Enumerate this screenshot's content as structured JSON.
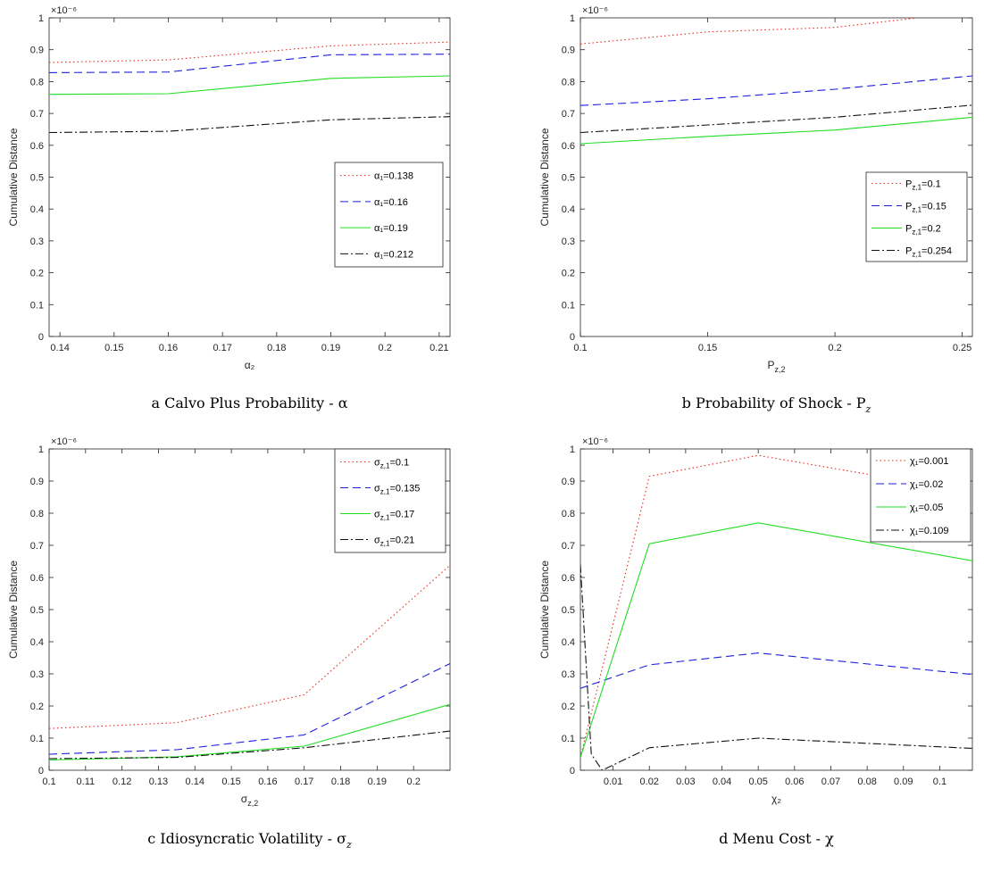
{
  "chart_data": [
    {
      "type": "line",
      "panel": "a",
      "caption": "a  Calvo Plus Probability - α",
      "exponent": "×10⁻⁶",
      "xlabel": "α₂",
      "ylabel": "Cumulative Distance",
      "xlim": [
        0.138,
        0.212
      ],
      "ylim": [
        0,
        1
      ],
      "xticks": [
        0.14,
        0.15,
        0.16,
        0.17,
        0.18,
        0.19,
        0.2,
        0.21
      ],
      "yticks": [
        0,
        0.1,
        0.2,
        0.3,
        0.4,
        0.5,
        0.6,
        0.7,
        0.8,
        0.9,
        1
      ],
      "legend_position": "right-middle",
      "x": [
        0.138,
        0.16,
        0.19,
        0.212
      ],
      "series": [
        {
          "name": "α₁=0.138",
          "style": "dotted",
          "color": "#e8281e",
          "values": [
            0.86,
            0.868,
            0.912,
            0.924
          ]
        },
        {
          "name": "α₁=0.16",
          "style": "dashed",
          "color": "#1f1fe0",
          "values": [
            0.828,
            0.83,
            0.884,
            0.886
          ]
        },
        {
          "name": "α₁=0.19",
          "style": "solid",
          "color": "#22dd22",
          "values": [
            0.76,
            0.762,
            0.81,
            0.818
          ]
        },
        {
          "name": "α₁=0.212",
          "style": "dashdot",
          "color": "#111111",
          "values": [
            0.64,
            0.644,
            0.68,
            0.69
          ]
        }
      ]
    },
    {
      "type": "line",
      "panel": "b",
      "caption": "b  Probability of Shock - P",
      "caption_sub": "z",
      "exponent": "×10⁻⁶",
      "xlabel": "P",
      "xlabel_sub": "z,2",
      "ylabel": "Cumulative Distance",
      "xlim": [
        0.1,
        0.254
      ],
      "ylim": [
        0,
        1
      ],
      "xticks": [
        0.1,
        0.15,
        0.2,
        0.25
      ],
      "yticks": [
        0,
        0.1,
        0.2,
        0.3,
        0.4,
        0.5,
        0.6,
        0.7,
        0.8,
        0.9,
        1
      ],
      "legend_position": "right-middle",
      "x": [
        0.1,
        0.15,
        0.2,
        0.254
      ],
      "series": [
        {
          "name": "P",
          "name_sub": "z,1",
          "name_val": "=0.1",
          "style": "dotted",
          "color": "#e8281e",
          "values": [
            0.918,
            0.956,
            0.97,
            1.02
          ]
        },
        {
          "name": "P",
          "name_sub": "z,1",
          "name_val": "=0.15",
          "style": "dashed",
          "color": "#1f1fe0",
          "values": [
            0.725,
            0.746,
            0.776,
            0.818
          ]
        },
        {
          "name": "P",
          "name_sub": "z,1",
          "name_val": "=0.2",
          "style": "solid",
          "color": "#22dd22",
          "values": [
            0.605,
            0.628,
            0.648,
            0.688
          ]
        },
        {
          "name": "P",
          "name_sub": "z,1",
          "name_val": "=0.254",
          "style": "dashdot",
          "color": "#111111",
          "values": [
            0.64,
            0.664,
            0.688,
            0.726
          ]
        }
      ]
    },
    {
      "type": "line",
      "panel": "c",
      "caption": "c  Idiosyncratic Volatility - σ",
      "caption_sub": "z",
      "exponent": "×10⁻⁶",
      "xlabel": "σ",
      "xlabel_sub": "z,2",
      "ylabel": "Cumulative Distance",
      "xlim": [
        0.1,
        0.21
      ],
      "ylim": [
        0,
        1
      ],
      "xticks": [
        0.1,
        0.11,
        0.12,
        0.13,
        0.14,
        0.15,
        0.16,
        0.17,
        0.18,
        0.19,
        0.2
      ],
      "yticks": [
        0,
        0.1,
        0.2,
        0.3,
        0.4,
        0.5,
        0.6,
        0.7,
        0.8,
        0.9,
        1
      ],
      "legend_position": "top-right",
      "x": [
        0.1,
        0.135,
        0.17,
        0.21
      ],
      "series": [
        {
          "name": "σ",
          "name_sub": "z,1",
          "name_val": "=0.1",
          "style": "dotted",
          "color": "#e8281e",
          "values": [
            0.13,
            0.148,
            0.235,
            0.638
          ]
        },
        {
          "name": "σ",
          "name_sub": "z,1",
          "name_val": "=0.135",
          "style": "dashed",
          "color": "#1f1fe0",
          "values": [
            0.05,
            0.064,
            0.11,
            0.332
          ]
        },
        {
          "name": "σ",
          "name_sub": "z,1",
          "name_val": "=0.17",
          "style": "solid",
          "color": "#22dd22",
          "values": [
            0.032,
            0.042,
            0.075,
            0.205
          ]
        },
        {
          "name": "σ",
          "name_sub": "z,1",
          "name_val": "=0.21",
          "style": "dashdot",
          "color": "#111111",
          "values": [
            0.036,
            0.04,
            0.07,
            0.122
          ]
        }
      ]
    },
    {
      "type": "line",
      "panel": "d",
      "caption": "d  Menu Cost - χ",
      "exponent": "×10⁻⁶",
      "xlabel": "χ₂",
      "ylabel": "Cumulative Distance",
      "xlim": [
        0.001,
        0.109
      ],
      "ylim": [
        0,
        1
      ],
      "xticks": [
        0.01,
        0.02,
        0.03,
        0.04,
        0.05,
        0.06,
        0.07,
        0.08,
        0.09,
        0.1
      ],
      "yticks": [
        0,
        0.1,
        0.2,
        0.3,
        0.4,
        0.5,
        0.6,
        0.7,
        0.8,
        0.9,
        1
      ],
      "legend_position": "top-right",
      "x": [
        0.001,
        0.02,
        0.05,
        0.109
      ],
      "series": [
        {
          "name": "χ₁=0.001",
          "style": "dotted",
          "color": "#e8281e",
          "x": [
            0.001,
            0.02,
            0.05,
            0.109
          ],
          "values": [
            0.04,
            0.915,
            0.98,
            0.865
          ]
        },
        {
          "name": "χ₁=0.02",
          "style": "dashed",
          "color": "#1f1fe0",
          "x": [
            0.001,
            0.02,
            0.05,
            0.109
          ],
          "values": [
            0.255,
            0.328,
            0.365,
            0.298
          ]
        },
        {
          "name": "χ₁=0.05",
          "style": "solid",
          "color": "#22dd22",
          "x": [
            0.001,
            0.02,
            0.05,
            0.109
          ],
          "values": [
            0.04,
            0.705,
            0.77,
            0.652
          ]
        },
        {
          "name": "χ₁=0.109",
          "style": "dashdot",
          "color": "#111111",
          "x": [
            0.001,
            0.004,
            0.007,
            0.02,
            0.05,
            0.109
          ],
          "values": [
            0.64,
            0.05,
            0.0,
            0.07,
            0.1,
            0.068
          ]
        }
      ]
    }
  ]
}
